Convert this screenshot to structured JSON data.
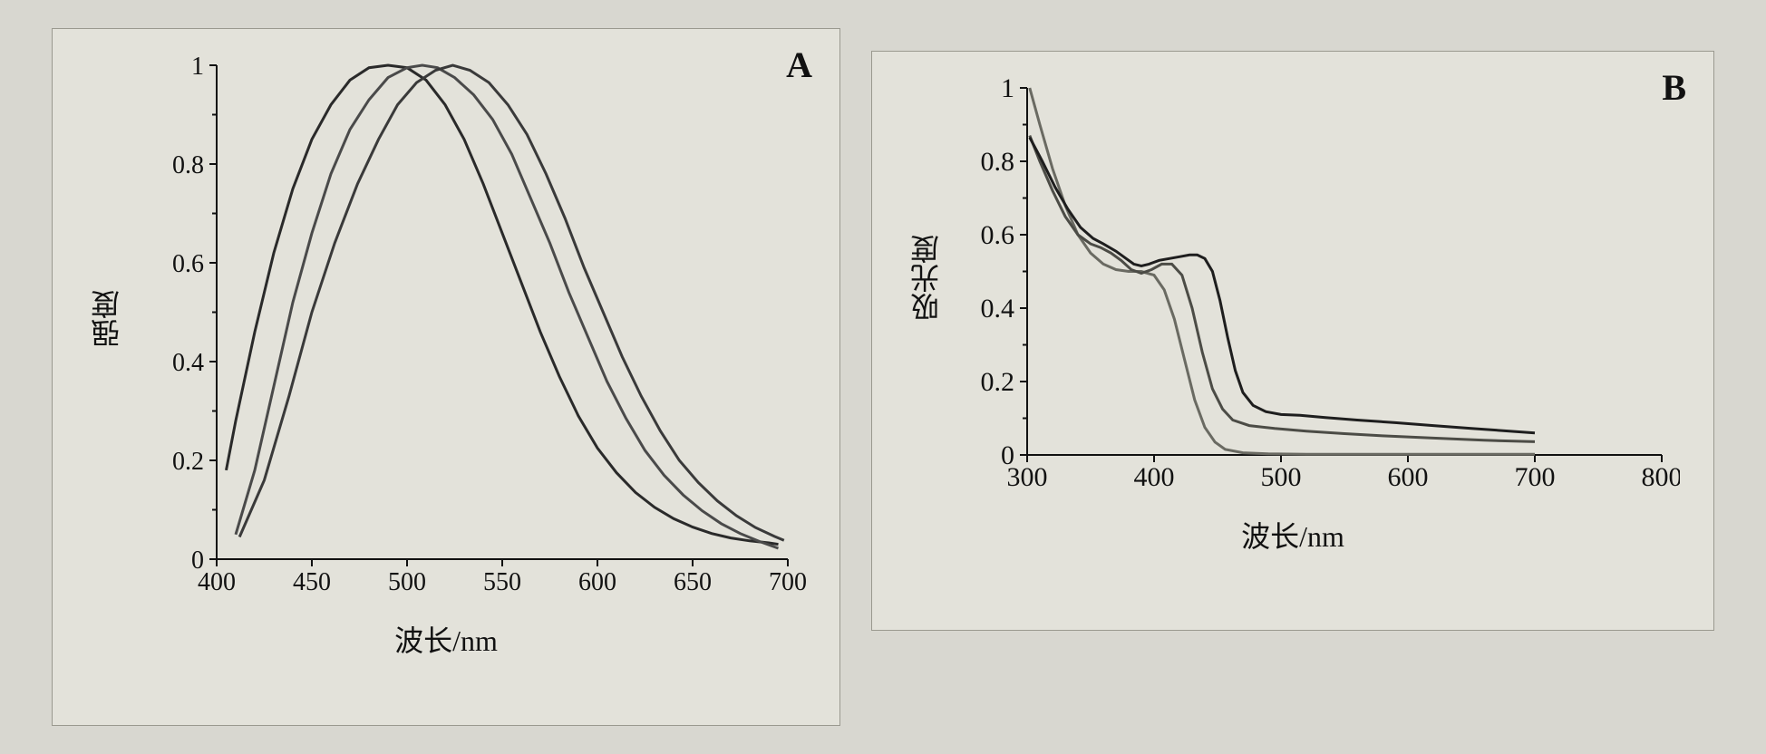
{
  "background_color": "#d8d7d0",
  "panel_bg": "#e3e2da",
  "panel_border": "#9a998f",
  "chartA": {
    "label": "A",
    "type": "line",
    "xlabel": "波长/nm",
    "ylabel": "强度",
    "xlim": [
      400,
      700
    ],
    "ylim": [
      0.0,
      1.0
    ],
    "xticks": [
      400,
      450,
      500,
      550,
      600,
      650,
      700
    ],
    "yticks": [
      0.0,
      0.2,
      0.4,
      0.6,
      0.8,
      1.0
    ],
    "axis_color": "#111111",
    "label_fontsize": 32,
    "tick_fontsize": 28,
    "line_width": 3,
    "series": [
      {
        "color": "#2a2a2a",
        "points": [
          [
            405,
            0.18
          ],
          [
            410,
            0.28
          ],
          [
            420,
            0.46
          ],
          [
            430,
            0.62
          ],
          [
            440,
            0.75
          ],
          [
            450,
            0.85
          ],
          [
            460,
            0.92
          ],
          [
            470,
            0.97
          ],
          [
            480,
            0.995
          ],
          [
            490,
            1.0
          ],
          [
            500,
            0.995
          ],
          [
            510,
            0.97
          ],
          [
            520,
            0.92
          ],
          [
            530,
            0.85
          ],
          [
            540,
            0.76
          ],
          [
            550,
            0.66
          ],
          [
            560,
            0.56
          ],
          [
            570,
            0.46
          ],
          [
            580,
            0.37
          ],
          [
            590,
            0.29
          ],
          [
            600,
            0.225
          ],
          [
            610,
            0.175
          ],
          [
            620,
            0.135
          ],
          [
            630,
            0.105
          ],
          [
            640,
            0.082
          ],
          [
            650,
            0.065
          ],
          [
            660,
            0.052
          ],
          [
            670,
            0.043
          ],
          [
            680,
            0.037
          ],
          [
            690,
            0.033
          ],
          [
            695,
            0.03
          ]
        ]
      },
      {
        "color": "#4a4a4a",
        "points": [
          [
            410,
            0.05
          ],
          [
            420,
            0.18
          ],
          [
            430,
            0.35
          ],
          [
            440,
            0.52
          ],
          [
            450,
            0.66
          ],
          [
            460,
            0.78
          ],
          [
            470,
            0.87
          ],
          [
            480,
            0.93
          ],
          [
            490,
            0.975
          ],
          [
            500,
            0.995
          ],
          [
            508,
            1.0
          ],
          [
            516,
            0.995
          ],
          [
            525,
            0.975
          ],
          [
            535,
            0.94
          ],
          [
            545,
            0.89
          ],
          [
            555,
            0.82
          ],
          [
            565,
            0.73
          ],
          [
            575,
            0.64
          ],
          [
            585,
            0.54
          ],
          [
            595,
            0.45
          ],
          [
            605,
            0.36
          ],
          [
            615,
            0.285
          ],
          [
            625,
            0.22
          ],
          [
            635,
            0.17
          ],
          [
            645,
            0.13
          ],
          [
            655,
            0.098
          ],
          [
            665,
            0.072
          ],
          [
            675,
            0.052
          ],
          [
            685,
            0.036
          ],
          [
            695,
            0.022
          ]
        ]
      },
      {
        "color": "#3a3a3a",
        "points": [
          [
            412,
            0.045
          ],
          [
            425,
            0.16
          ],
          [
            438,
            0.33
          ],
          [
            450,
            0.5
          ],
          [
            462,
            0.64
          ],
          [
            474,
            0.76
          ],
          [
            485,
            0.85
          ],
          [
            495,
            0.92
          ],
          [
            505,
            0.965
          ],
          [
            515,
            0.99
          ],
          [
            524,
            1.0
          ],
          [
            533,
            0.99
          ],
          [
            543,
            0.965
          ],
          [
            553,
            0.92
          ],
          [
            563,
            0.86
          ],
          [
            573,
            0.78
          ],
          [
            583,
            0.69
          ],
          [
            593,
            0.59
          ],
          [
            603,
            0.5
          ],
          [
            613,
            0.41
          ],
          [
            623,
            0.33
          ],
          [
            633,
            0.26
          ],
          [
            643,
            0.2
          ],
          [
            653,
            0.155
          ],
          [
            663,
            0.118
          ],
          [
            673,
            0.088
          ],
          [
            683,
            0.064
          ],
          [
            693,
            0.046
          ],
          [
            698,
            0.038
          ]
        ]
      }
    ]
  },
  "chartB": {
    "label": "B",
    "type": "line",
    "xlabel": "波长/nm",
    "ylabel": "吸光度",
    "xlim": [
      300,
      800
    ],
    "ylim": [
      0.0,
      1.0
    ],
    "xticks": [
      300,
      400,
      500,
      600,
      700,
      800
    ],
    "yticks": [
      0,
      0.2,
      0.4,
      0.6,
      0.8,
      1.0
    ],
    "axis_color": "#111111",
    "label_fontsize": 32,
    "tick_fontsize": 30,
    "line_width": 3,
    "series": [
      {
        "color": "#6a6a62",
        "points": [
          [
            302,
            1.0
          ],
          [
            310,
            0.9
          ],
          [
            320,
            0.78
          ],
          [
            330,
            0.68
          ],
          [
            340,
            0.6
          ],
          [
            350,
            0.55
          ],
          [
            360,
            0.52
          ],
          [
            370,
            0.505
          ],
          [
            380,
            0.5
          ],
          [
            390,
            0.5
          ],
          [
            400,
            0.49
          ],
          [
            408,
            0.45
          ],
          [
            416,
            0.37
          ],
          [
            424,
            0.26
          ],
          [
            432,
            0.15
          ],
          [
            440,
            0.075
          ],
          [
            448,
            0.035
          ],
          [
            456,
            0.015
          ],
          [
            470,
            0.006
          ],
          [
            490,
            0.003
          ],
          [
            520,
            0.002
          ],
          [
            560,
            0.002
          ],
          [
            600,
            0.002
          ],
          [
            650,
            0.002
          ],
          [
            700,
            0.002
          ]
        ]
      },
      {
        "color": "#4c4c46",
        "points": [
          [
            302,
            0.87
          ],
          [
            310,
            0.8
          ],
          [
            320,
            0.72
          ],
          [
            330,
            0.65
          ],
          [
            340,
            0.6
          ],
          [
            350,
            0.575
          ],
          [
            358,
            0.565
          ],
          [
            366,
            0.55
          ],
          [
            374,
            0.53
          ],
          [
            382,
            0.505
          ],
          [
            390,
            0.495
          ],
          [
            398,
            0.505
          ],
          [
            406,
            0.52
          ],
          [
            414,
            0.52
          ],
          [
            422,
            0.49
          ],
          [
            430,
            0.4
          ],
          [
            438,
            0.28
          ],
          [
            446,
            0.18
          ],
          [
            454,
            0.125
          ],
          [
            462,
            0.095
          ],
          [
            475,
            0.08
          ],
          [
            495,
            0.072
          ],
          [
            520,
            0.065
          ],
          [
            550,
            0.058
          ],
          [
            580,
            0.052
          ],
          [
            620,
            0.046
          ],
          [
            660,
            0.04
          ],
          [
            700,
            0.036
          ]
        ]
      },
      {
        "color": "#1e1e1e",
        "points": [
          [
            302,
            0.865
          ],
          [
            312,
            0.8
          ],
          [
            322,
            0.73
          ],
          [
            332,
            0.67
          ],
          [
            342,
            0.62
          ],
          [
            352,
            0.59
          ],
          [
            360,
            0.575
          ],
          [
            370,
            0.555
          ],
          [
            378,
            0.535
          ],
          [
            384,
            0.52
          ],
          [
            390,
            0.515
          ],
          [
            396,
            0.52
          ],
          [
            404,
            0.53
          ],
          [
            412,
            0.535
          ],
          [
            420,
            0.54
          ],
          [
            428,
            0.545
          ],
          [
            434,
            0.545
          ],
          [
            440,
            0.535
          ],
          [
            446,
            0.5
          ],
          [
            452,
            0.42
          ],
          [
            458,
            0.32
          ],
          [
            464,
            0.23
          ],
          [
            470,
            0.17
          ],
          [
            478,
            0.135
          ],
          [
            488,
            0.118
          ],
          [
            500,
            0.11
          ],
          [
            515,
            0.108
          ],
          [
            535,
            0.102
          ],
          [
            560,
            0.095
          ],
          [
            590,
            0.088
          ],
          [
            620,
            0.08
          ],
          [
            650,
            0.072
          ],
          [
            680,
            0.065
          ],
          [
            700,
            0.06
          ]
        ]
      }
    ]
  }
}
